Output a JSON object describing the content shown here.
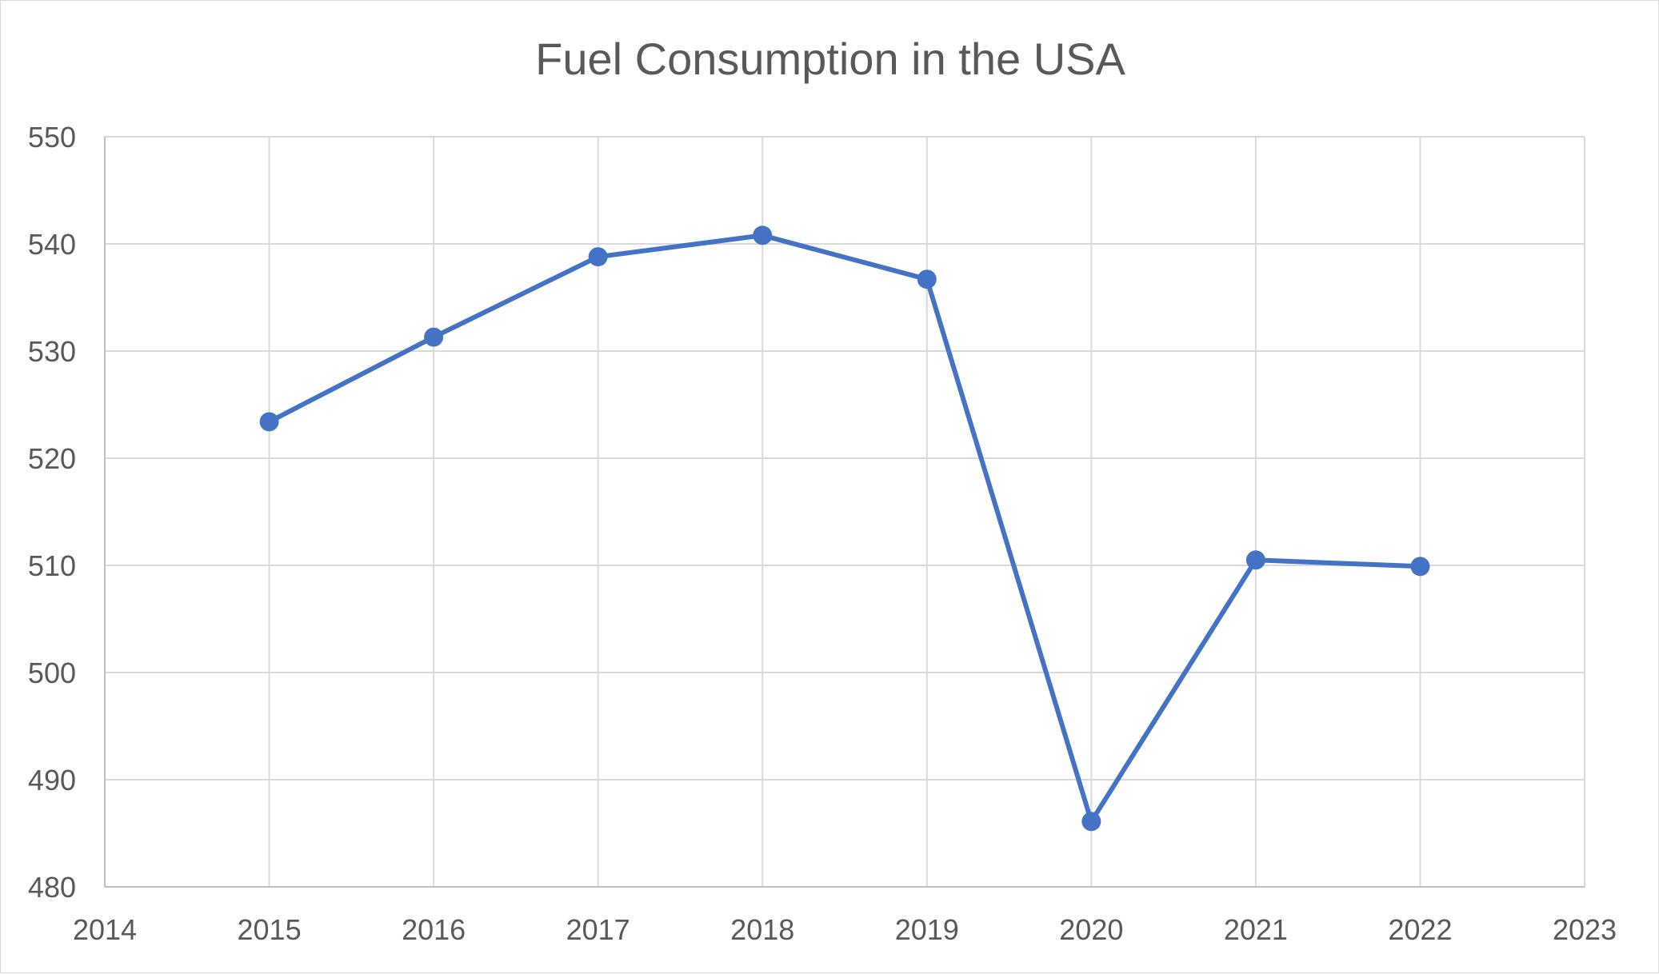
{
  "chart_data": {
    "type": "line",
    "title": "Fuel Consumption in the USA",
    "xlabel": "",
    "ylabel": "",
    "xlim": [
      2014,
      2023
    ],
    "ylim": [
      480,
      550
    ],
    "x_ticks": [
      2014,
      2015,
      2016,
      2017,
      2018,
      2019,
      2020,
      2021,
      2022,
      2023
    ],
    "y_ticks": [
      480,
      490,
      500,
      510,
      520,
      530,
      540,
      550
    ],
    "grid": true,
    "legend": "none",
    "series": [
      {
        "color": "#4472c4",
        "marker": "circle",
        "x": [
          2015,
          2016,
          2017,
          2018,
          2019,
          2020,
          2021,
          2022
        ],
        "y": [
          523.4,
          531.3,
          538.8,
          540.8,
          536.7,
          486.1,
          510.5,
          509.9
        ]
      }
    ]
  }
}
